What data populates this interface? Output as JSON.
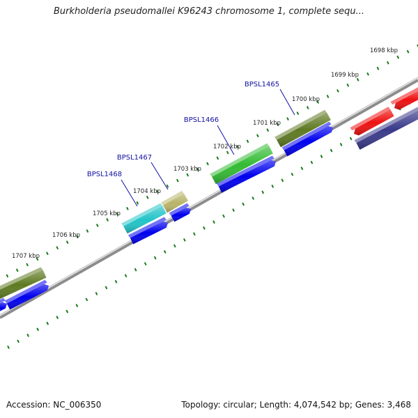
{
  "title": "Burkholderia pseudomallei K96243 chromosome 1, complete sequ...",
  "footer": {
    "accession": "Accession: NC_006350",
    "summary": "Topology: circular; Length: 4,074,542 bp; Genes: 3,468"
  },
  "colors": {
    "tick": "#1a7a1a",
    "backbone": "#8a8a8a",
    "gene_label": "#1010a0",
    "cds_forward": "#0000ee"
  },
  "ticks": [
    {
      "label": "1698 kbp"
    },
    {
      "label": "1699 kbp"
    },
    {
      "label": "1700 kbp"
    },
    {
      "label": "1701 kbp"
    },
    {
      "label": "1702 kbp"
    },
    {
      "label": "1703 kbp"
    },
    {
      "label": "1704 kbp"
    },
    {
      "label": "1705 kbp"
    },
    {
      "label": "1706 kbp"
    },
    {
      "label": "1707 kbp"
    }
  ],
  "genes": [
    {
      "label": "BPSL1465",
      "color": "#5f7a22"
    },
    {
      "label": "BPSL1466",
      "color": "#33bb33"
    },
    {
      "label": "BPSL1467",
      "color": "#b9b46a"
    },
    {
      "label": "BPSL1468",
      "color": "#22c4c8"
    },
    {
      "label": "",
      "color": "#5f7a22"
    }
  ],
  "reverse_features": [
    {
      "color": "#ee1111"
    },
    {
      "color": "#ee1111"
    },
    {
      "color": "#3a3a8a"
    }
  ]
}
